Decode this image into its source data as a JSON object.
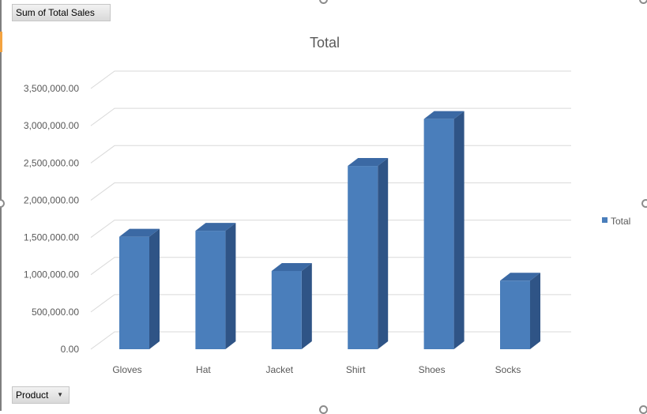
{
  "pivot": {
    "value_field_label": "Sum of Total Sales",
    "row_field_label": "Product"
  },
  "colors": {
    "bar_front": "#4a7ebb",
    "bar_top": "#3b69a4",
    "bar_side": "#2f5486",
    "gridline": "#d9d9d9",
    "text": "#595959"
  },
  "chart_data": {
    "type": "bar",
    "title": "Total",
    "categories": [
      "Gloves",
      "Hat",
      "Jacket",
      "Shirt",
      "Shoes",
      "Socks"
    ],
    "series": [
      {
        "name": "Total",
        "values": [
          1510000,
          1590000,
          1050000,
          2460000,
          3090000,
          920000
        ]
      }
    ],
    "yticks": [
      "0.00",
      "500,000.00",
      "1,000,000.00",
      "1,500,000.00",
      "2,000,000.00",
      "2,500,000.00",
      "3,000,000.00",
      "3,500,000.00"
    ],
    "ylim": [
      0,
      3500000
    ],
    "grid": true,
    "legend_position": "right",
    "style": "3d-column"
  }
}
